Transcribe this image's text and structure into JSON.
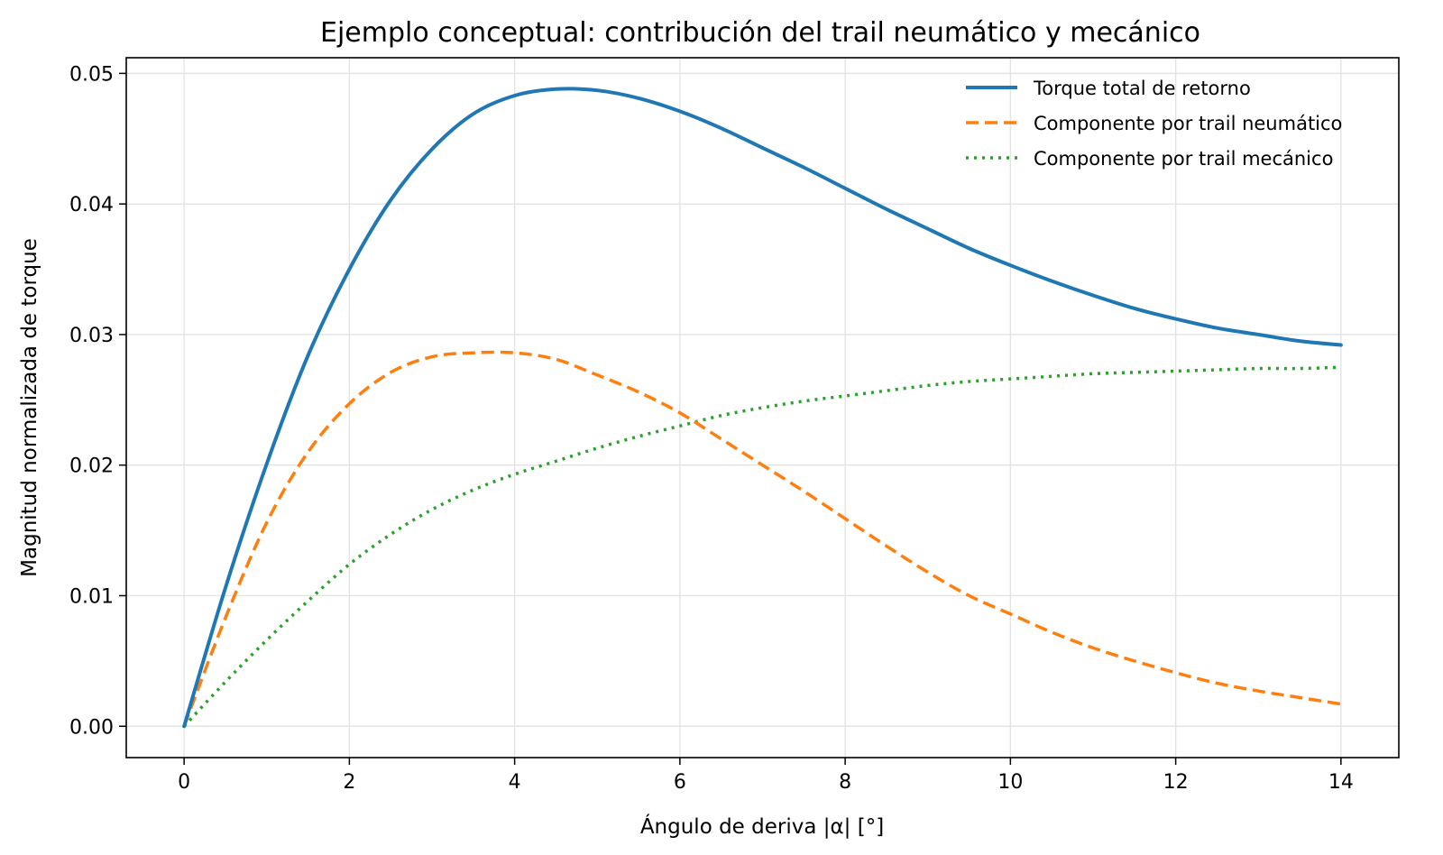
{
  "chart_data": {
    "type": "line",
    "title": "Ejemplo conceptual: contribución del trail neumático y mecánico",
    "xlabel": "Ángulo de deriva |α| [°]",
    "ylabel": "Magnitud normalizada de torque",
    "xlim": [
      -0.7,
      14.7
    ],
    "ylim": [
      -0.0024,
      0.0512
    ],
    "xticks": [
      0,
      2,
      4,
      6,
      8,
      10,
      12,
      14
    ],
    "xtick_labels": [
      "0",
      "2",
      "4",
      "6",
      "8",
      "10",
      "12",
      "14"
    ],
    "yticks": [
      0.0,
      0.01,
      0.02,
      0.03,
      0.04,
      0.05
    ],
    "ytick_labels": [
      "0.00",
      "0.01",
      "0.02",
      "0.03",
      "0.04",
      "0.05"
    ],
    "grid": true,
    "legend_position": "top-right",
    "x": [
      0,
      0.5,
      1,
      1.5,
      2,
      2.5,
      3,
      3.5,
      4,
      4.5,
      5,
      5.5,
      6,
      6.5,
      7,
      7.5,
      8,
      8.5,
      9,
      9.5,
      10,
      10.5,
      11,
      11.5,
      12,
      12.5,
      13,
      13.5,
      14
    ],
    "series": [
      {
        "name": "Torque total de retorno",
        "style": "solid",
        "color": "#1f77b4",
        "values": [
          0.0,
          0.0106,
          0.0201,
          0.0284,
          0.035,
          0.0403,
          0.0442,
          0.0469,
          0.0483,
          0.0488,
          0.0487,
          0.0481,
          0.0471,
          0.0458,
          0.0443,
          0.0428,
          0.0412,
          0.0396,
          0.0381,
          0.0366,
          0.0353,
          0.0341,
          0.033,
          0.032,
          0.0312,
          0.0305,
          0.03,
          0.0295,
          0.0292
        ]
      },
      {
        "name": "Componente por trail neumático",
        "style": "dashed",
        "color": "#ff7f0e",
        "values": [
          0.0,
          0.0083,
          0.0156,
          0.021,
          0.0247,
          0.0271,
          0.0283,
          0.0286,
          0.0286,
          0.0281,
          0.0269,
          0.0256,
          0.024,
          0.022,
          0.02,
          0.018,
          0.0159,
          0.0138,
          0.0118,
          0.01,
          0.0086,
          0.0072,
          0.006,
          0.005,
          0.0041,
          0.0033,
          0.0027,
          0.0022,
          0.0017
        ]
      },
      {
        "name": "Componente por trail mecánico",
        "style": "dotted",
        "color": "#2ca02c",
        "values": [
          0.0,
          0.0034,
          0.0066,
          0.0096,
          0.0124,
          0.0147,
          0.0166,
          0.0181,
          0.0193,
          0.0203,
          0.0213,
          0.0222,
          0.023,
          0.0238,
          0.0244,
          0.0249,
          0.0253,
          0.0257,
          0.0261,
          0.0264,
          0.0266,
          0.0268,
          0.027,
          0.0271,
          0.0272,
          0.0273,
          0.0274,
          0.0274,
          0.0275
        ]
      }
    ]
  }
}
